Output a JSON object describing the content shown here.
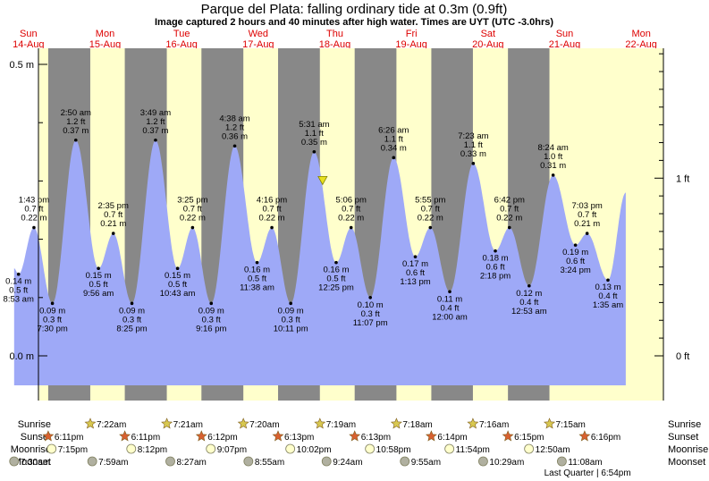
{
  "chart_data": {
    "type": "area",
    "title": "Parque del Plata: falling  ordinary tide at 0.3m (0.9ft)",
    "subtitle": "Image captured 2 hours and 40 minutes after high water. Times are UYT (UTC -3.0hrs)",
    "days": [
      {
        "dow": "Sun",
        "date": "14-Aug"
      },
      {
        "dow": "Mon",
        "date": "15-Aug"
      },
      {
        "dow": "Tue",
        "date": "16-Aug"
      },
      {
        "dow": "Wed",
        "date": "17-Aug"
      },
      {
        "dow": "Thu",
        "date": "18-Aug"
      },
      {
        "dow": "Fri",
        "date": "19-Aug"
      },
      {
        "dow": "Sat",
        "date": "20-Aug"
      },
      {
        "dow": "Sun",
        "date": "21-Aug"
      },
      {
        "dow": "Mon",
        "date": "22-Aug"
      }
    ],
    "y_axis_left": {
      "unit": "m",
      "ticks": [
        {
          "value": 0.0,
          "label": "0.0 m"
        },
        {
          "value": 0.5,
          "label": "0.5 m"
        }
      ]
    },
    "y_axis_right": {
      "unit": "ft",
      "ticks": [
        {
          "value": 0,
          "label": "0 ft"
        },
        {
          "value": 1,
          "label": "1 ft"
        }
      ]
    },
    "ylim_m": [
      -0.08,
      0.55
    ],
    "x_range": [
      "14-Aug 00:00",
      "23-Aug 00:00"
    ],
    "current_level_m": 0.3,
    "current_time": "18-Aug 08:10",
    "extremes": [
      {
        "time": "8:53 am",
        "t": "14-Aug 08:53",
        "m": 0.14,
        "ft": "0.5 ft",
        "kind": "low"
      },
      {
        "time": "1:43 pm",
        "t": "14-Aug 13:43",
        "m": 0.22,
        "ft": "0.7 ft",
        "kind": "high"
      },
      {
        "time": "7:30 pm",
        "t": "14-Aug 19:30",
        "m": 0.09,
        "ft": "0.3 ft",
        "kind": "low"
      },
      {
        "time": "2:50 am",
        "t": "15-Aug 02:50",
        "m": 0.37,
        "ft": "1.2 ft",
        "kind": "high"
      },
      {
        "time": "9:56 am",
        "t": "15-Aug 09:56",
        "m": 0.15,
        "ft": "0.5 ft",
        "kind": "low"
      },
      {
        "time": "2:35 pm",
        "t": "15-Aug 14:35",
        "m": 0.21,
        "ft": "0.7 ft",
        "kind": "high"
      },
      {
        "time": "8:25 pm",
        "t": "15-Aug 20:25",
        "m": 0.09,
        "ft": "0.3 ft",
        "kind": "low"
      },
      {
        "time": "3:49 am",
        "t": "16-Aug 03:49",
        "m": 0.37,
        "ft": "1.2 ft",
        "kind": "high"
      },
      {
        "time": "10:43 am",
        "t": "16-Aug 10:43",
        "m": 0.15,
        "ft": "0.5 ft",
        "kind": "low"
      },
      {
        "time": "3:25 pm",
        "t": "16-Aug 15:25",
        "m": 0.22,
        "ft": "0.7 ft",
        "kind": "high"
      },
      {
        "time": "9:16 pm",
        "t": "16-Aug 21:16",
        "m": 0.09,
        "ft": "0.3 ft",
        "kind": "low"
      },
      {
        "time": "4:38 am",
        "t": "17-Aug 04:38",
        "m": 0.36,
        "ft": "1.2 ft",
        "kind": "high"
      },
      {
        "time": "11:38 am",
        "t": "17-Aug 11:38",
        "m": 0.16,
        "ft": "0.5 ft",
        "kind": "low"
      },
      {
        "time": "4:16 pm",
        "t": "17-Aug 16:16",
        "m": 0.22,
        "ft": "0.7 ft",
        "kind": "high"
      },
      {
        "time": "10:11 pm",
        "t": "17-Aug 22:11",
        "m": 0.09,
        "ft": "0.3 ft",
        "kind": "low"
      },
      {
        "time": "5:31 am",
        "t": "18-Aug 05:31",
        "m": 0.35,
        "ft": "1.1 ft",
        "kind": "high"
      },
      {
        "time": "12:25 pm",
        "t": "18-Aug 12:25",
        "m": 0.16,
        "ft": "0.5 ft",
        "kind": "low"
      },
      {
        "time": "5:06 pm",
        "t": "18-Aug 17:06",
        "m": 0.22,
        "ft": "0.7 ft",
        "kind": "high"
      },
      {
        "time": "11:07 pm",
        "t": "18-Aug 23:07",
        "m": 0.1,
        "ft": "0.3 ft",
        "kind": "low"
      },
      {
        "time": "6:26 am",
        "t": "19-Aug 06:26",
        "m": 0.34,
        "ft": "1.1 ft",
        "kind": "high"
      },
      {
        "time": "1:13 pm",
        "t": "19-Aug 13:13",
        "m": 0.17,
        "ft": "0.6 ft",
        "kind": "low"
      },
      {
        "time": "5:55 pm",
        "t": "19-Aug 17:55",
        "m": 0.22,
        "ft": "0.7 ft",
        "kind": "high"
      },
      {
        "time": "12:00 am",
        "t": "20-Aug 00:00",
        "m": 0.11,
        "ft": "0.4 ft",
        "kind": "low"
      },
      {
        "time": "7:23 am",
        "t": "20-Aug 07:23",
        "m": 0.33,
        "ft": "1.1 ft",
        "kind": "high"
      },
      {
        "time": "2:18 pm",
        "t": "20-Aug 14:18",
        "m": 0.18,
        "ft": "0.6 ft",
        "kind": "low"
      },
      {
        "time": "6:42 pm",
        "t": "20-Aug 18:42",
        "m": 0.22,
        "ft": "0.7 ft",
        "kind": "high"
      },
      {
        "time": "12:53 am",
        "t": "21-Aug 00:53",
        "m": 0.12,
        "ft": "0.4 ft",
        "kind": "low"
      },
      {
        "time": "8:24 am",
        "t": "21-Aug 08:24",
        "m": 0.31,
        "ft": "1.0 ft",
        "kind": "high"
      },
      {
        "time": "3:24 pm",
        "t": "21-Aug 15:24",
        "m": 0.19,
        "ft": "0.6 ft",
        "kind": "low"
      },
      {
        "time": "7:03 pm",
        "t": "21-Aug 19:03",
        "m": 0.21,
        "ft": "0.7 ft",
        "kind": "high"
      },
      {
        "time": "1:35 am",
        "t": "22-Aug 01:35",
        "m": 0.13,
        "ft": "0.4 ft",
        "kind": "low"
      }
    ],
    "tide_start": {
      "t": "14-Aug 07:30",
      "m": 0.15
    },
    "tide_end": {
      "t": "22-Aug 07:10",
      "m": 0.28
    },
    "night_periods": [
      {
        "start": "14-Aug 18:11",
        "end": "15-Aug 07:22"
      },
      {
        "start": "15-Aug 18:11",
        "end": "16-Aug 07:21"
      },
      {
        "start": "16-Aug 18:12",
        "end": "17-Aug 07:20"
      },
      {
        "start": "17-Aug 18:13",
        "end": "18-Aug 07:19"
      },
      {
        "start": "18-Aug 18:13",
        "end": "19-Aug 07:18"
      },
      {
        "start": "19-Aug 18:14",
        "end": "20-Aug 07:16"
      },
      {
        "start": "20-Aug 18:15",
        "end": "21-Aug 07:15"
      }
    ],
    "almanac": {
      "row_labels": [
        "Sunrise",
        "Sunset",
        "Moonrise",
        "Moonset"
      ],
      "sunrise": [
        {
          "t": "15-Aug 07:22",
          "label": "7:22am"
        },
        {
          "t": "16-Aug 07:21",
          "label": "7:21am"
        },
        {
          "t": "17-Aug 07:20",
          "label": "7:20am"
        },
        {
          "t": "18-Aug 07:19",
          "label": "7:19am"
        },
        {
          "t": "19-Aug 07:18",
          "label": "7:18am"
        },
        {
          "t": "20-Aug 07:16",
          "label": "7:16am"
        },
        {
          "t": "21-Aug 07:15",
          "label": "7:15am"
        }
      ],
      "sunset": [
        {
          "t": "14-Aug 18:11",
          "label": "6:11pm"
        },
        {
          "t": "15-Aug 18:11",
          "label": "6:11pm"
        },
        {
          "t": "16-Aug 18:12",
          "label": "6:12pm"
        },
        {
          "t": "17-Aug 18:13",
          "label": "6:13pm"
        },
        {
          "t": "18-Aug 18:13",
          "label": "6:13pm"
        },
        {
          "t": "19-Aug 18:14",
          "label": "6:14pm"
        },
        {
          "t": "20-Aug 18:15",
          "label": "6:15pm"
        },
        {
          "t": "21-Aug 18:16",
          "label": "6:16pm"
        }
      ],
      "moonrise": [
        {
          "t": "14-Aug 19:15",
          "label": "7:15pm"
        },
        {
          "t": "15-Aug 20:12",
          "label": "8:12pm"
        },
        {
          "t": "16-Aug 21:07",
          "label": "9:07pm"
        },
        {
          "t": "17-Aug 22:02",
          "label": "10:02pm"
        },
        {
          "t": "18-Aug 22:58",
          "label": "10:58pm"
        },
        {
          "t": "19-Aug 23:54",
          "label": "11:54pm"
        },
        {
          "t": "21-Aug 00:50",
          "label": "12:50am"
        }
      ],
      "moonset": [
        {
          "t": "14-Aug 07:30",
          "label": "7:30am"
        },
        {
          "t": "15-Aug 07:59",
          "label": "7:59am"
        },
        {
          "t": "16-Aug 08:27",
          "label": "8:27am"
        },
        {
          "t": "17-Aug 08:55",
          "label": "8:55am"
        },
        {
          "t": "18-Aug 09:24",
          "label": "9:24am"
        },
        {
          "t": "19-Aug 09:55",
          "label": "9:55am"
        },
        {
          "t": "20-Aug 10:29",
          "label": "10:29am"
        },
        {
          "t": "21-Aug 11:08",
          "label": "11:08am"
        }
      ],
      "moon_phase": {
        "t": "21-Aug 18:54",
        "label": "Last Quarter | 6:54pm"
      }
    },
    "colors": {
      "day": "#ffffcc",
      "night": "#888888",
      "water": "#9ea9f7",
      "day_label": "#dd0000",
      "sun_star": "#d8c850",
      "sunset_star": "#d86030",
      "moonrise": "#ffffcc",
      "moonset": "#b0b0a0"
    }
  }
}
